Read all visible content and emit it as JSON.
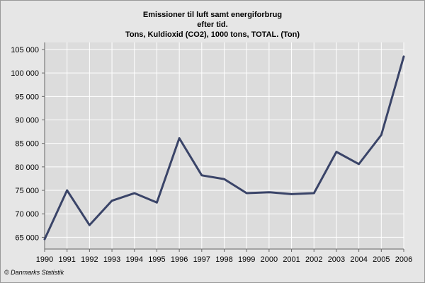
{
  "chart_data": {
    "type": "line",
    "title_lines": [
      "Emissioner til luft samt energiforbrug",
      "efter tid.",
      "Tons, Kuldioxid (CO2), 1000 tons, TOTAL. (Ton)"
    ],
    "x": [
      "1990",
      "1991",
      "1992",
      "1993",
      "1994",
      "1995",
      "1996",
      "1997",
      "1998",
      "1999",
      "2000",
      "2001",
      "2002",
      "2003",
      "2004",
      "2005",
      "2006"
    ],
    "series": [
      {
        "values": [
          64600,
          75000,
          67600,
          72800,
          74400,
          72400,
          86100,
          78200,
          77400,
          74400,
          74600,
          74200,
          74400,
          83200,
          80600,
          86800,
          103500
        ]
      }
    ],
    "ylim": [
      62500,
      106500
    ],
    "yticks": [
      65000,
      70000,
      75000,
      80000,
      85000,
      90000,
      95000,
      100000,
      105000
    ],
    "ytick_labels": [
      "65 000",
      "70 000",
      "75 000",
      "80 000",
      "85 000",
      "90 000",
      "95 000",
      "100 000",
      "105 000"
    ],
    "grid": true,
    "line_color": "#3a4468",
    "plot_background": "#dcdcdc",
    "grid_color": "#ffffff"
  },
  "credit": "© Danmarks Statistik"
}
